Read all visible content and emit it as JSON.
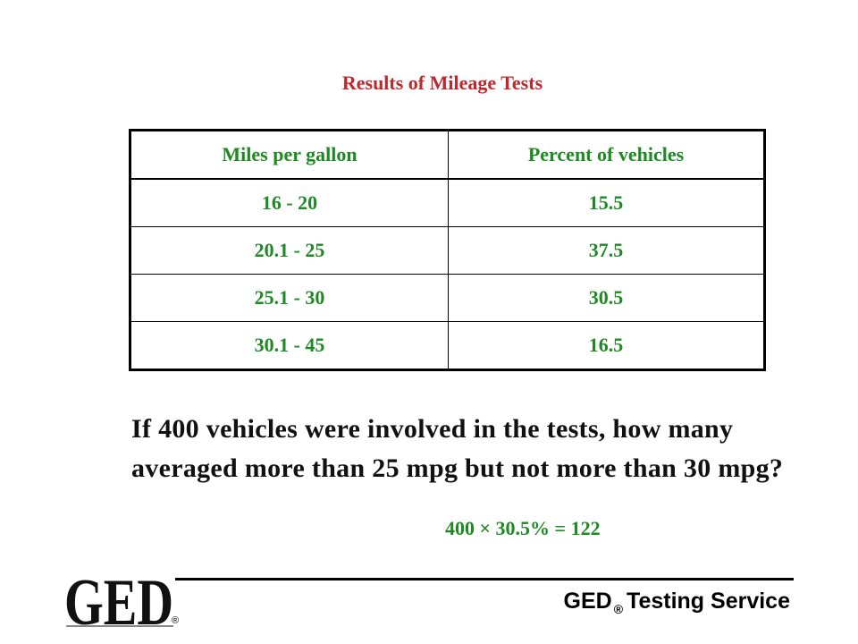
{
  "title": "Results of Mileage Tests",
  "table": {
    "headers": [
      "Miles per gallon",
      "Percent of vehicles"
    ],
    "rows": [
      [
        "16 - 20",
        "15.5"
      ],
      [
        "20.1 - 25",
        "37.5"
      ],
      [
        "25.1 - 30",
        "30.5"
      ],
      [
        "30.1 - 45",
        "16.5"
      ]
    ]
  },
  "question": "If 400 vehicles were involved in the tests, how many averaged more than 25 mpg but not more than 30 mpg?",
  "answer": "400 × 30.5% = 122",
  "footer": {
    "logo_text": "GED",
    "logo_reg": "®",
    "service_prefix": "GED",
    "service_reg": "®",
    "service_suffix": "Testing Service"
  },
  "colors": {
    "title": "#c0282d",
    "table_text": "#1f8a24",
    "answer": "#1f8a24"
  }
}
